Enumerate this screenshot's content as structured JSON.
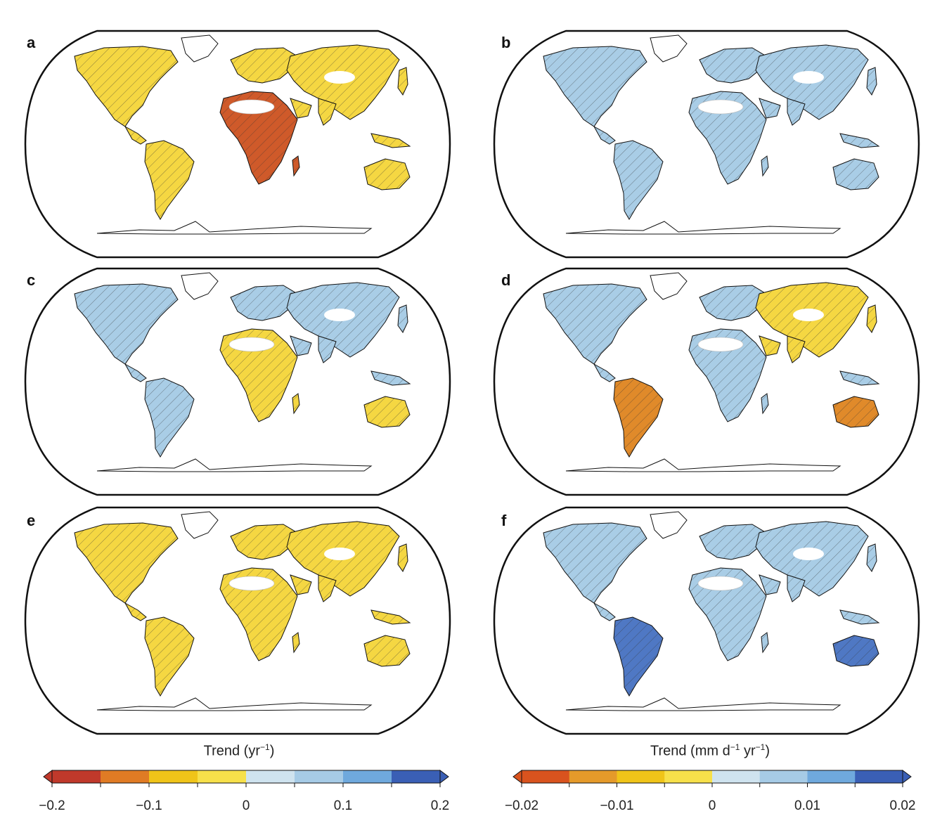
{
  "panels": [
    {
      "letter": "a",
      "scale": "left",
      "pattern": "warm"
    },
    {
      "letter": "b",
      "scale": "right",
      "pattern": "cool"
    },
    {
      "letter": "c",
      "scale": "left",
      "pattern": "mixed"
    },
    {
      "letter": "d",
      "scale": "right",
      "pattern": "mixed2"
    },
    {
      "letter": "e",
      "scale": "left",
      "pattern": "warm2"
    },
    {
      "letter": "f",
      "scale": "right",
      "pattern": "cool2"
    }
  ],
  "colorbars": [
    {
      "title_main": "Trend (yr",
      "title_sup": "−1",
      "title_end": ")",
      "ticks": [
        "−0.2",
        "−0.1",
        "0",
        "0.1",
        "0.2"
      ],
      "colors": [
        "#c0392b",
        "#e07b24",
        "#f0c419",
        "#f7e04a",
        "#cfe3ef",
        "#a6cbe6",
        "#6fa9dd",
        "#3a5fb5"
      ]
    },
    {
      "title_main": "Trend (mm d",
      "title_sup": "−1",
      "title_mid": " yr",
      "title_sup2": "−1",
      "title_end": ")",
      "ticks": [
        "−0.02",
        "−0.01",
        "0",
        "0.01",
        "0.02"
      ],
      "colors": [
        "#d9531e",
        "#e59a2a",
        "#f0c419",
        "#f7e04a",
        "#cfe3ef",
        "#a6cbe6",
        "#6fa9dd",
        "#3a5fb5"
      ]
    }
  ],
  "map_colors": {
    "warm": "#f5d742",
    "warm_dark": "#e08a2a",
    "red": "#cf5a2a",
    "cool": "#a9cde6",
    "cool_dark": "#4f78c4",
    "nodata": "#ffffff",
    "outline": "#111111",
    "border": "#bbbbbb"
  }
}
